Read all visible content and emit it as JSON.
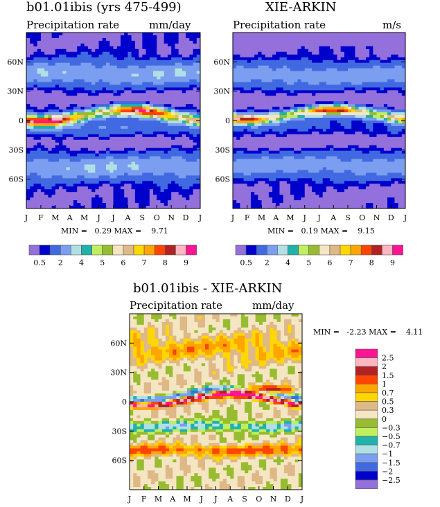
{
  "palette": [
    "#9370DB",
    "#0000CD",
    "#4169E1",
    "#7B9EF0",
    "#B0E0E6",
    "#20B2AA",
    "#BFEF5F",
    "#98BC30",
    "#F5E6C3",
    "#DEB887",
    "#FFD700",
    "#FFA500",
    "#FF4500",
    "#B22222",
    "#FFB6C1",
    "#FF1493"
  ],
  "chart_data": [
    {
      "type": "heatmap",
      "title": "b01.01ibis (yrs 475-499)",
      "subtitle_left": "Precipitation rate",
      "subtitle_right": "mm/day",
      "x_ticks": [
        "J",
        "F",
        "M",
        "A",
        "M",
        "J",
        "J",
        "A",
        "S",
        "O",
        "N",
        "D",
        "J"
      ],
      "y_ticks": [
        "60N",
        "30N",
        "0",
        "30S",
        "60S"
      ],
      "min_label": "MIN =",
      "min": "0.29",
      "max_label": "MAX =",
      "max": "9.71",
      "levels": [
        0.5,
        1,
        2,
        3,
        4,
        4.5,
        5,
        5.5,
        6,
        6.5,
        7,
        7.5,
        8,
        8.5,
        9
      ],
      "colorbar_labels": [
        "0.5",
        "2",
        "4",
        "5",
        "6",
        "7",
        "8",
        "9"
      ]
    },
    {
      "type": "heatmap",
      "title": "XIE-ARKIN",
      "subtitle_left": "Precipitation rate",
      "subtitle_right": "m/s",
      "x_ticks": [
        "J",
        "F",
        "M",
        "A",
        "M",
        "J",
        "J",
        "A",
        "S",
        "O",
        "N",
        "D",
        "J"
      ],
      "y_ticks": [
        "60N",
        "30N",
        "0",
        "30S",
        "60S"
      ],
      "min_label": "MIN =",
      "min": "0.19",
      "max_label": "MAX =",
      "max": "9.15",
      "levels": [
        0.5,
        1,
        2,
        3,
        4,
        4.5,
        5,
        5.5,
        6,
        6.5,
        7,
        7.5,
        8,
        8.5,
        9
      ],
      "colorbar_labels": [
        "0.5",
        "2",
        "4",
        "5",
        "6",
        "7",
        "8",
        "9"
      ]
    },
    {
      "type": "heatmap",
      "title": "b01.01ibis - XIE-ARKIN",
      "subtitle_left": "Precipitation rate",
      "subtitle_right": "mm/day",
      "x_ticks": [
        "J",
        "F",
        "M",
        "A",
        "M",
        "J",
        "J",
        "A",
        "S",
        "O",
        "N",
        "D",
        "J"
      ],
      "y_ticks": [
        "60N",
        "30N",
        "0",
        "30S",
        "60S"
      ],
      "min_label": "MIN =",
      "min": "-2.23",
      "max_label": "MAX =",
      "max": "4.11",
      "levels": [
        -2.5,
        -2,
        -1.5,
        -1,
        -0.7,
        -0.5,
        -0.3,
        0,
        0.3,
        0.5,
        0.7,
        1,
        1.5,
        2,
        2.5
      ],
      "colorbar_labels": [
        "2.5",
        "2",
        "1.5",
        "1",
        "0.7",
        "0.5",
        "0.3",
        "0",
        "−0.3",
        "−0.5",
        "−0.7",
        "−1",
        "−1.5",
        "−2",
        "−2.5"
      ]
    }
  ]
}
